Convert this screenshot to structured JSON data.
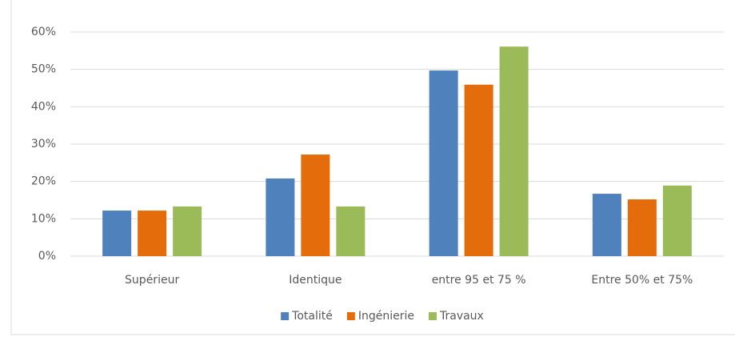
{
  "chart_data": {
    "type": "bar",
    "categories": [
      "Supérieur",
      "Identique",
      "entre 95 et 75 %",
      "Entre 50% et 75%"
    ],
    "series": [
      {
        "name": "Totalité",
        "color": "#4f81bd",
        "values": [
          12.2,
          20.8,
          49.7,
          16.7
        ]
      },
      {
        "name": "Ingénierie",
        "color": "#e46c0a",
        "values": [
          12.2,
          27.2,
          45.9,
          15.2
        ]
      },
      {
        "name": "Travaux",
        "color": "#9bbb59",
        "values": [
          13.3,
          13.3,
          56.1,
          18.9
        ]
      }
    ],
    "ylim": [
      0,
      60
    ],
    "yticks": [
      {
        "value": 0,
        "label": "0%"
      },
      {
        "value": 10,
        "label": "10%"
      },
      {
        "value": 20,
        "label": "20%"
      },
      {
        "value": 30,
        "label": "30%"
      },
      {
        "value": 40,
        "label": "40%"
      },
      {
        "value": 50,
        "label": "50%"
      },
      {
        "value": 60,
        "label": "60%"
      }
    ],
    "grid": true,
    "legend": "bottom"
  }
}
